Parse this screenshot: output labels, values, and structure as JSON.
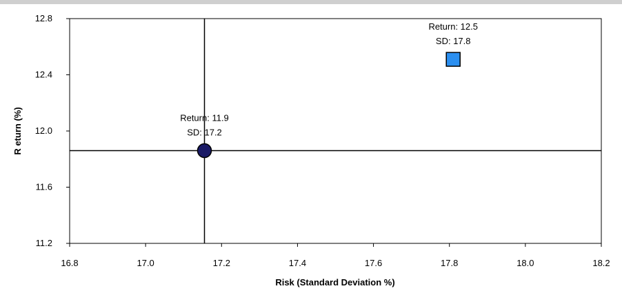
{
  "chart_data": {
    "type": "scatter",
    "title": "",
    "xlabel": "Risk (Standard Deviation %)",
    "ylabel": "R eturn (%)",
    "xlim": [
      16.8,
      18.2
    ],
    "ylim": [
      11.2,
      12.8
    ],
    "xticks": [
      "16.8",
      "17.0",
      "17.2",
      "17.4",
      "17.6",
      "17.8",
      "18.0",
      "18.2"
    ],
    "yticks": [
      "11.2",
      "11.6",
      "12.0",
      "12.4",
      "12.8"
    ],
    "grid": false,
    "legend": "none",
    "crosshair": {
      "x": 17.155,
      "y": 11.86
    },
    "points": [
      {
        "x": 17.155,
        "y": 11.86,
        "marker": "circle",
        "color": "#1a1a66",
        "label_line1": "Return: 11.9",
        "label_line2": "SD: 17.2"
      },
      {
        "x": 17.81,
        "y": 12.51,
        "marker": "square",
        "color": "#2b8ff0",
        "label_line1": "Return: 12.5",
        "label_line2": "SD: 17.8"
      }
    ]
  }
}
